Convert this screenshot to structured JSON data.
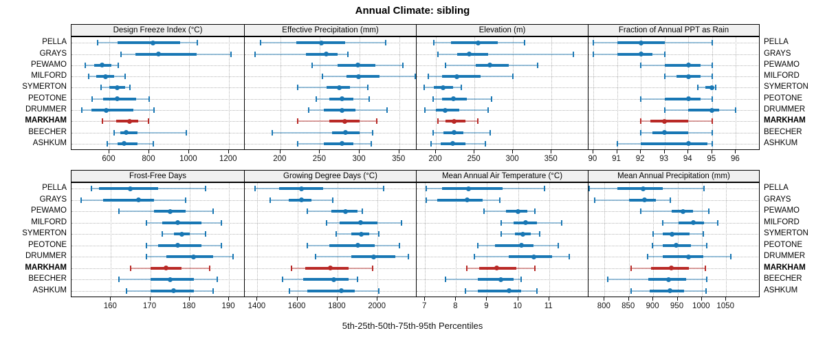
{
  "title": "Annual Climate: sibling",
  "xlabel": "5th-25th-50th-75th-95th Percentiles",
  "percentile_labels": [
    "5th",
    "25th",
    "50th",
    "75th",
    "95th"
  ],
  "sites": [
    "PELLA",
    "GRAYS",
    "PEWAMO",
    "MILFORD",
    "SYMERTON",
    "PEOTONE",
    "DRUMMER",
    "MARKHAM",
    "BEECHER",
    "ASHKUM"
  ],
  "highlight_site": "MARKHAM",
  "colors": {
    "series_normal": "#1877b4",
    "series_highlight": "#b92926",
    "grid": "#b4b4b4",
    "strip_bg": "#f0f0f0",
    "panel_border": "#000000"
  },
  "chart_data": [
    {
      "type": "interval",
      "title": "Design Freeze Index (°C)",
      "row": 0,
      "col": 0,
      "xlim": [
        410,
        1280
      ],
      "ticks": [
        600,
        800,
        1000,
        1200
      ],
      "series": [
        {
          "name": "PELLA",
          "values": [
            540,
            640,
            820,
            955,
            1040
          ]
        },
        {
          "name": "GRAYS",
          "values": [
            660,
            730,
            845,
            1040,
            1210
          ]
        },
        {
          "name": "PEWAMO",
          "values": [
            480,
            525,
            565,
            610,
            645
          ]
        },
        {
          "name": "MILFORD",
          "values": [
            495,
            535,
            580,
            625,
            680
          ]
        },
        {
          "name": "SYMERTON",
          "values": [
            560,
            600,
            640,
            680,
            705
          ]
        },
        {
          "name": "PEOTONE",
          "values": [
            515,
            570,
            640,
            735,
            800
          ]
        },
        {
          "name": "DRUMMER",
          "values": [
            460,
            510,
            585,
            720,
            825
          ]
        },
        {
          "name": "MARKHAM",
          "values": [
            565,
            635,
            700,
            745,
            795
          ]
        },
        {
          "name": "BEECHER",
          "values": [
            625,
            655,
            685,
            740,
            985
          ]
        },
        {
          "name": "ASHKUM",
          "values": [
            590,
            640,
            675,
            740,
            820
          ]
        }
      ]
    },
    {
      "type": "interval",
      "title": "Effective Precipitation (mm)",
      "row": 0,
      "col": 1,
      "xlim": [
        155,
        372
      ],
      "ticks": [
        200,
        250,
        300,
        350
      ],
      "series": [
        {
          "name": "PELLA",
          "values": [
            175,
            220,
            252,
            282,
            333
          ]
        },
        {
          "name": "GRAYS",
          "values": [
            168,
            232,
            258,
            272,
            285
          ]
        },
        {
          "name": "PEWAMO",
          "values": [
            240,
            272,
            298,
            320,
            355
          ]
        },
        {
          "name": "MILFORD",
          "values": [
            253,
            283,
            299,
            325,
            370
          ]
        },
        {
          "name": "SYMERTON",
          "values": [
            222,
            258,
            274,
            288,
            310
          ]
        },
        {
          "name": "PEOTONE",
          "values": [
            245,
            262,
            278,
            292,
            312
          ]
        },
        {
          "name": "DRUMMER",
          "values": [
            236,
            255,
            278,
            295,
            335
          ]
        },
        {
          "name": "MARKHAM",
          "values": [
            222,
            262,
            281,
            300,
            322
          ]
        },
        {
          "name": "BEECHER",
          "values": [
            190,
            265,
            282,
            300,
            316
          ]
        },
        {
          "name": "ASHKUM",
          "values": [
            222,
            255,
            278,
            292,
            315
          ]
        }
      ]
    },
    {
      "type": "interval",
      "title": "Elevation (m)",
      "row": 0,
      "col": 2,
      "xlim": [
        175,
        398
      ],
      "ticks": [
        200,
        250,
        300,
        350
      ],
      "series": [
        {
          "name": "PELLA",
          "values": [
            197,
            220,
            255,
            280,
            315
          ]
        },
        {
          "name": "GRAYS",
          "values": [
            203,
            228,
            243,
            268,
            378
          ]
        },
        {
          "name": "PEWAMO",
          "values": [
            212,
            252,
            270,
            295,
            332
          ]
        },
        {
          "name": "MILFORD",
          "values": [
            190,
            208,
            227,
            258,
            300
          ]
        },
        {
          "name": "SYMERTON",
          "values": [
            185,
            197,
            209,
            222,
            233
          ]
        },
        {
          "name": "PEOTONE",
          "values": [
            196,
            208,
            223,
            240,
            272
          ]
        },
        {
          "name": "DRUMMER",
          "values": [
            186,
            200,
            212,
            230,
            268
          ]
        },
        {
          "name": "MARKHAM",
          "values": [
            203,
            212,
            224,
            238,
            254
          ]
        },
        {
          "name": "BEECHER",
          "values": [
            196,
            210,
            224,
            236,
            270
          ]
        },
        {
          "name": "ASHKUM",
          "values": [
            194,
            206,
            222,
            238,
            264
          ]
        }
      ]
    },
    {
      "type": "interval",
      "title": "Fraction of Annual PPT as Rain",
      "row": 0,
      "col": 3,
      "xlim": [
        89.8,
        97.0
      ],
      "ticks": [
        90,
        91,
        92,
        93,
        94,
        95,
        96
      ],
      "series": [
        {
          "name": "PELLA",
          "values": [
            90,
            91,
            92,
            93,
            95
          ]
        },
        {
          "name": "GRAYS",
          "values": [
            90,
            91,
            92,
            92.5,
            93
          ]
        },
        {
          "name": "PEWAMO",
          "values": [
            92,
            93,
            94,
            94.5,
            95
          ]
        },
        {
          "name": "MILFORD",
          "values": [
            93,
            93.5,
            94,
            94.5,
            95
          ]
        },
        {
          "name": "SYMERTON",
          "values": [
            94.4,
            94.7,
            95,
            95.05,
            95.15
          ]
        },
        {
          "name": "PEOTONE",
          "values": [
            92,
            93,
            94,
            94.5,
            95
          ]
        },
        {
          "name": "DRUMMER",
          "values": [
            93,
            94,
            95,
            95.3,
            96
          ]
        },
        {
          "name": "MARKHAM",
          "values": [
            92,
            92.4,
            93,
            94,
            95
          ]
        },
        {
          "name": "BEECHER",
          "values": [
            92,
            92.5,
            93,
            94,
            95
          ]
        },
        {
          "name": "ASHKUM",
          "values": [
            91,
            92,
            94,
            94.8,
            95
          ]
        }
      ]
    },
    {
      "type": "interval",
      "title": "Frost-Free Days",
      "row": 1,
      "col": 0,
      "xlim": [
        150,
        194
      ],
      "ticks": [
        160,
        170,
        180,
        190
      ],
      "series": [
        {
          "name": "PELLA",
          "values": [
            155,
            157,
            165,
            172,
            184
          ]
        },
        {
          "name": "GRAYS",
          "values": [
            152.5,
            158,
            167,
            171,
            179
          ]
        },
        {
          "name": "PEWAMO",
          "values": [
            162,
            171,
            175,
            179,
            186
          ]
        },
        {
          "name": "MILFORD",
          "values": [
            169,
            173,
            177,
            183,
            188
          ]
        },
        {
          "name": "SYMERTON",
          "values": [
            173,
            176,
            178,
            180,
            184
          ]
        },
        {
          "name": "PEOTONE",
          "values": [
            169,
            172,
            177,
            183,
            188
          ]
        },
        {
          "name": "DRUMMER",
          "values": [
            169,
            174,
            181,
            186,
            191
          ]
        },
        {
          "name": "MARKHAM",
          "values": [
            165,
            170,
            174,
            178,
            185
          ]
        },
        {
          "name": "BEECHER",
          "values": [
            162,
            170,
            175,
            181,
            187
          ]
        },
        {
          "name": "ASHKUM",
          "values": [
            164,
            170,
            176,
            181,
            186
          ]
        }
      ]
    },
    {
      "type": "interval",
      "title": "Growing Degree Days (°C)",
      "row": 1,
      "col": 1,
      "xlim": [
        1337,
        2195
      ],
      "ticks": [
        1400,
        1600,
        1800,
        2000
      ],
      "series": [
        {
          "name": "PELLA",
          "values": [
            1390,
            1510,
            1620,
            1730,
            2030
          ]
        },
        {
          "name": "GRAYS",
          "values": [
            1465,
            1555,
            1620,
            1670,
            1775
          ]
        },
        {
          "name": "PEWAMO",
          "values": [
            1650,
            1770,
            1840,
            1900,
            1925
          ]
        },
        {
          "name": "MILFORD",
          "values": [
            1745,
            1810,
            1915,
            2000,
            2120
          ]
        },
        {
          "name": "SYMERTON",
          "values": [
            1795,
            1870,
            1920,
            1960,
            2005
          ]
        },
        {
          "name": "PEOTONE",
          "values": [
            1650,
            1760,
            1900,
            1985,
            2110
          ]
        },
        {
          "name": "DRUMMER",
          "values": [
            1690,
            1870,
            1980,
            2090,
            2155
          ]
        },
        {
          "name": "MARKHAM",
          "values": [
            1570,
            1640,
            1765,
            1855,
            1975
          ]
        },
        {
          "name": "BEECHER",
          "values": [
            1525,
            1630,
            1780,
            1855,
            1900
          ]
        },
        {
          "name": "ASHKUM",
          "values": [
            1560,
            1650,
            1820,
            1885,
            2005
          ]
        }
      ]
    },
    {
      "type": "interval",
      "title": "Mean Annual Air Temperature (°C)",
      "row": 1,
      "col": 2,
      "xlim": [
        6.73,
        12.27
      ],
      "ticks": [
        7,
        8,
        9,
        10,
        11
      ],
      "series": [
        {
          "name": "PELLA",
          "values": [
            7.05,
            7.55,
            8.4,
            9.5,
            10.85
          ]
        },
        {
          "name": "GRAYS",
          "values": [
            7.05,
            7.4,
            8.35,
            8.85,
            9.4
          ]
        },
        {
          "name": "PEWAMO",
          "values": [
            8.9,
            9.6,
            10.0,
            10.3,
            10.55
          ]
        },
        {
          "name": "MILFORD",
          "values": [
            9.45,
            9.85,
            10.25,
            10.6,
            11.4
          ]
        },
        {
          "name": "SYMERTON",
          "values": [
            9.45,
            9.9,
            10.15,
            10.4,
            10.7
          ]
        },
        {
          "name": "PEOTONE",
          "values": [
            8.7,
            9.25,
            10.1,
            10.5,
            11.3
          ]
        },
        {
          "name": "DRUMMER",
          "values": [
            8.6,
            9.7,
            10.5,
            11.1,
            11.65
          ]
        },
        {
          "name": "MARKHAM",
          "values": [
            8.35,
            8.75,
            9.3,
            9.95,
            10.55
          ]
        },
        {
          "name": "BEECHER",
          "values": [
            7.65,
            8.7,
            9.45,
            9.85,
            10.1
          ]
        },
        {
          "name": "ASHKUM",
          "values": [
            8.3,
            8.7,
            9.7,
            10.1,
            10.6
          ]
        }
      ]
    },
    {
      "type": "interval",
      "title": "Mean Annual Precipitation (mm)",
      "row": 1,
      "col": 3,
      "xlim": [
        767,
        1119
      ],
      "ticks": [
        800,
        850,
        900,
        950,
        1000,
        1050
      ],
      "series": [
        {
          "name": "PELLA",
          "values": [
            768,
            827,
            880,
            920,
            1005
          ]
        },
        {
          "name": "GRAYS",
          "values": [
            780,
            850,
            882,
            905,
            935
          ]
        },
        {
          "name": "PEWAMO",
          "values": [
            875,
            938,
            962,
            982,
            1015
          ]
        },
        {
          "name": "MILFORD",
          "values": [
            920,
            952,
            982,
            1005,
            1032
          ]
        },
        {
          "name": "SYMERTON",
          "values": [
            900,
            920,
            938,
            975,
            1003
          ]
        },
        {
          "name": "PEOTONE",
          "values": [
            898,
            920,
            947,
            978,
            1010
          ]
        },
        {
          "name": "DRUMMER",
          "values": [
            888,
            920,
            973,
            1003,
            1060
          ]
        },
        {
          "name": "MARKHAM",
          "values": [
            855,
            895,
            937,
            973,
            1007
          ]
        },
        {
          "name": "BEECHER",
          "values": [
            807,
            890,
            932,
            968,
            1010
          ]
        },
        {
          "name": "ASHKUM",
          "values": [
            855,
            893,
            935,
            963,
            1008
          ]
        }
      ]
    }
  ]
}
